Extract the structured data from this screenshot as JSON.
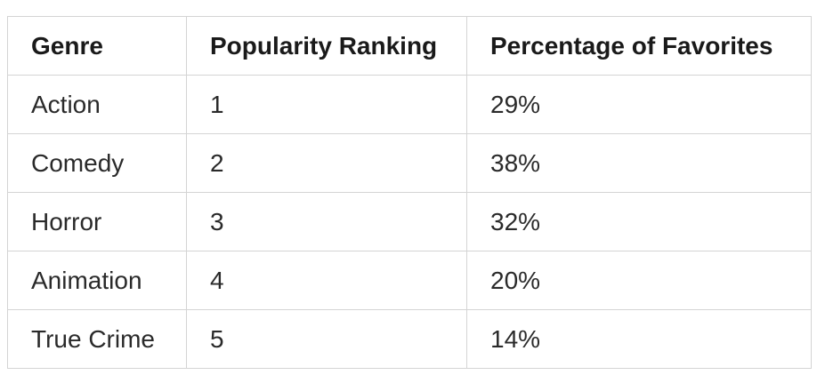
{
  "table": {
    "headers": [
      "Genre",
      "Popularity Ranking",
      "Percentage of Favorites"
    ],
    "rows": [
      [
        "Action",
        "1",
        "29%"
      ],
      [
        "Comedy",
        "2",
        "38%"
      ],
      [
        "Horror",
        "3",
        "32%"
      ],
      [
        "Animation",
        "4",
        "20%"
      ],
      [
        "True Crime",
        "5",
        "14%"
      ]
    ]
  }
}
